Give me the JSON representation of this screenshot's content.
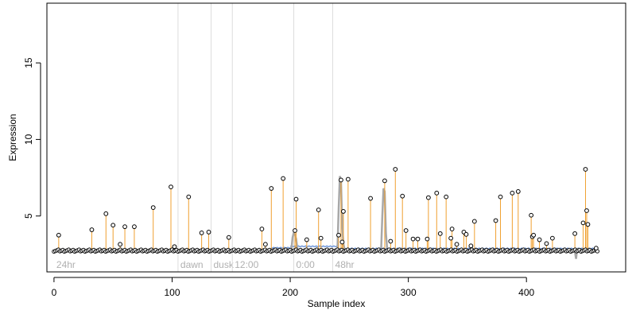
{
  "chart_data": {
    "type": "scatter",
    "title": "",
    "xlabel": "Sample index",
    "ylabel": "Expression",
    "xlim": [
      -6,
      484
    ],
    "ylim": [
      1.35,
      18.9
    ],
    "xticks": [
      0,
      100,
      200,
      300,
      400
    ],
    "yticks": [
      5,
      10,
      15
    ],
    "grid": false,
    "legend": "none",
    "baseline": 2.7,
    "colors": {
      "baseline_step": "#7b9fdc",
      "stem": "#f0a030",
      "point_fill": "#ffffff",
      "point_stroke": "#000000",
      "spike_line": "#a8a8a8",
      "annotation_line": "#dddddd",
      "annotation_text": "#b0b0b0"
    },
    "annotations": [
      {
        "label": "24hr",
        "x": 0
      },
      {
        "label": "dawn",
        "x": 105
      },
      {
        "label": "dusk",
        "x": 133
      },
      {
        "label": "12:00",
        "x": 151
      },
      {
        "label": "0:00",
        "x": 203
      },
      {
        "label": "48hr",
        "x": 236
      }
    ],
    "baseline_segments": [
      {
        "x0": 0,
        "x1": 184,
        "y": 2.75
      },
      {
        "x0": 184,
        "x1": 200,
        "y": 2.9
      },
      {
        "x0": 200,
        "x1": 240,
        "y": 3.0
      },
      {
        "x0": 240,
        "x1": 460,
        "y": 2.85
      }
    ],
    "spike_lines": [
      {
        "x": [
          201,
          202,
          203,
          204,
          205,
          206
        ],
        "y": [
          2.8,
          3.6,
          3.9,
          3.8,
          3.5,
          2.9
        ]
      },
      {
        "x": [
          240,
          241,
          242,
          243,
          244,
          245,
          246
        ],
        "y": [
          2.9,
          5.5,
          7.6,
          7.3,
          4.5,
          3.2,
          2.8
        ]
      },
      {
        "x": [
          277,
          278,
          279,
          280,
          281,
          282
        ],
        "y": [
          2.9,
          5.0,
          6.8,
          6.6,
          3.9,
          2.9
        ]
      },
      {
        "x": [
          441,
          442,
          443,
          444
        ],
        "y": [
          2.7,
          2.2,
          2.9,
          2.7
        ]
      }
    ],
    "high_points": [
      {
        "x": 4,
        "y": 3.75
      },
      {
        "x": 32,
        "y": 4.1
      },
      {
        "x": 44,
        "y": 5.15
      },
      {
        "x": 50,
        "y": 4.4
      },
      {
        "x": 56,
        "y": 3.15
      },
      {
        "x": 60,
        "y": 4.3
      },
      {
        "x": 68,
        "y": 4.3
      },
      {
        "x": 84,
        "y": 5.55
      },
      {
        "x": 99,
        "y": 6.9
      },
      {
        "x": 102,
        "y": 3.0
      },
      {
        "x": 114,
        "y": 6.25
      },
      {
        "x": 125,
        "y": 3.9
      },
      {
        "x": 131,
        "y": 3.95
      },
      {
        "x": 148,
        "y": 3.6
      },
      {
        "x": 176,
        "y": 4.15
      },
      {
        "x": 179,
        "y": 3.15
      },
      {
        "x": 184,
        "y": 6.8
      },
      {
        "x": 194,
        "y": 7.45
      },
      {
        "x": 204,
        "y": 4.05
      },
      {
        "x": 205,
        "y": 6.1
      },
      {
        "x": 214,
        "y": 3.45
      },
      {
        "x": 224,
        "y": 5.4
      },
      {
        "x": 226,
        "y": 3.55
      },
      {
        "x": 241,
        "y": 3.75
      },
      {
        "x": 243,
        "y": 7.35
      },
      {
        "x": 244,
        "y": 3.3
      },
      {
        "x": 245,
        "y": 5.3
      },
      {
        "x": 249,
        "y": 7.4
      },
      {
        "x": 268,
        "y": 6.15
      },
      {
        "x": 280,
        "y": 7.3
      },
      {
        "x": 285,
        "y": 3.35
      },
      {
        "x": 289,
        "y": 8.05
      },
      {
        "x": 295,
        "y": 6.3
      },
      {
        "x": 298,
        "y": 4.05
      },
      {
        "x": 304,
        "y": 3.5
      },
      {
        "x": 308,
        "y": 3.5
      },
      {
        "x": 316,
        "y": 3.5
      },
      {
        "x": 317,
        "y": 6.2
      },
      {
        "x": 324,
        "y": 6.5
      },
      {
        "x": 327,
        "y": 3.85
      },
      {
        "x": 332,
        "y": 6.25
      },
      {
        "x": 336,
        "y": 3.55
      },
      {
        "x": 337,
        "y": 4.15
      },
      {
        "x": 341,
        "y": 3.15
      },
      {
        "x": 347,
        "y": 3.95
      },
      {
        "x": 349,
        "y": 3.8
      },
      {
        "x": 353,
        "y": 3.05
      },
      {
        "x": 356,
        "y": 4.65
      },
      {
        "x": 374,
        "y": 4.7
      },
      {
        "x": 378,
        "y": 6.25
      },
      {
        "x": 388,
        "y": 6.5
      },
      {
        "x": 393,
        "y": 6.6
      },
      {
        "x": 404,
        "y": 5.05
      },
      {
        "x": 405,
        "y": 3.65
      },
      {
        "x": 406,
        "y": 3.75
      },
      {
        "x": 411,
        "y": 3.45
      },
      {
        "x": 417,
        "y": 3.2
      },
      {
        "x": 422,
        "y": 3.55
      },
      {
        "x": 441,
        "y": 3.85
      },
      {
        "x": 448,
        "y": 4.55
      },
      {
        "x": 450,
        "y": 8.05
      },
      {
        "x": 451,
        "y": 5.35
      },
      {
        "x": 452,
        "y": 4.45
      },
      {
        "x": 459,
        "y": 2.9
      }
    ]
  }
}
